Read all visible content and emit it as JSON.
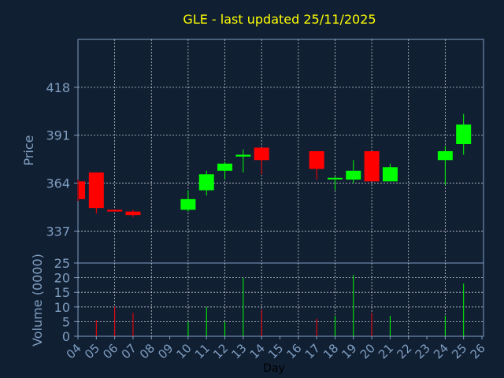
{
  "chart_data": {
    "type": "candlestick",
    "title": "GLE - last updated 25/11/2025",
    "xlabel": "Day",
    "price_panel": {
      "ylabel": "Price",
      "yticks": [
        337,
        364,
        391,
        418
      ],
      "ylim": [
        319,
        445
      ]
    },
    "volume_panel": {
      "ylabel": "Volume (0000)",
      "yticks": [
        0,
        5,
        10,
        15,
        20,
        25
      ],
      "ylim": [
        0,
        25
      ]
    },
    "x_labels": [
      "04",
      "05",
      "06",
      "07",
      "08",
      "09",
      "10",
      "11",
      "12",
      "13",
      "14",
      "15",
      "16",
      "17",
      "18",
      "19",
      "20",
      "21",
      "22",
      "23",
      "24",
      "25",
      "26"
    ],
    "candles": [
      {
        "day": "04",
        "open": 365,
        "close": 355,
        "high": 366,
        "low": 354,
        "volume": 0
      },
      {
        "day": "05",
        "open": 370,
        "close": 350,
        "high": 370,
        "low": 347,
        "volume": 5.5
      },
      {
        "day": "06",
        "open": 349,
        "close": 348,
        "high": 349,
        "low": 348,
        "volume": 10
      },
      {
        "day": "07",
        "open": 348,
        "close": 346,
        "high": 349,
        "low": 345,
        "volume": 8
      },
      {
        "day": "10",
        "open": 349,
        "close": 355,
        "high": 360,
        "low": 348,
        "volume": 5
      },
      {
        "day": "11",
        "open": 360,
        "close": 369,
        "high": 371,
        "low": 357,
        "volume": 10
      },
      {
        "day": "12",
        "open": 371,
        "close": 375,
        "high": 376,
        "low": 366,
        "volume": 5
      },
      {
        "day": "13",
        "open": 379,
        "close": 380,
        "high": 383,
        "low": 370,
        "volume": 20
      },
      {
        "day": "14",
        "open": 384,
        "close": 377,
        "high": 384,
        "low": 369,
        "volume": 9
      },
      {
        "day": "17",
        "open": 382,
        "close": 372,
        "high": 382,
        "low": 366,
        "volume": 6
      },
      {
        "day": "18",
        "open": 367,
        "close": 367,
        "high": 368,
        "low": 360,
        "volume": 7
      },
      {
        "day": "19",
        "open": 366,
        "close": 371,
        "high": 377,
        "low": 364,
        "volume": 21
      },
      {
        "day": "20",
        "open": 382,
        "close": 365,
        "high": 382,
        "low": 365,
        "volume": 8
      },
      {
        "day": "21",
        "open": 365,
        "close": 373,
        "high": 375,
        "low": 365,
        "volume": 7
      },
      {
        "day": "24",
        "open": 377,
        "close": 382,
        "high": 385,
        "low": 363,
        "volume": 7
      },
      {
        "day": "25",
        "open": 386,
        "close": 397,
        "high": 403,
        "low": 380,
        "volume": 18
      }
    ],
    "up_color": "#00ff00",
    "down_color": "#ff0000",
    "grid": true,
    "background": "#111f33",
    "panel_background": "#111f33",
    "axis_color": "#7f9ec0",
    "title_color": "#ffff00"
  }
}
